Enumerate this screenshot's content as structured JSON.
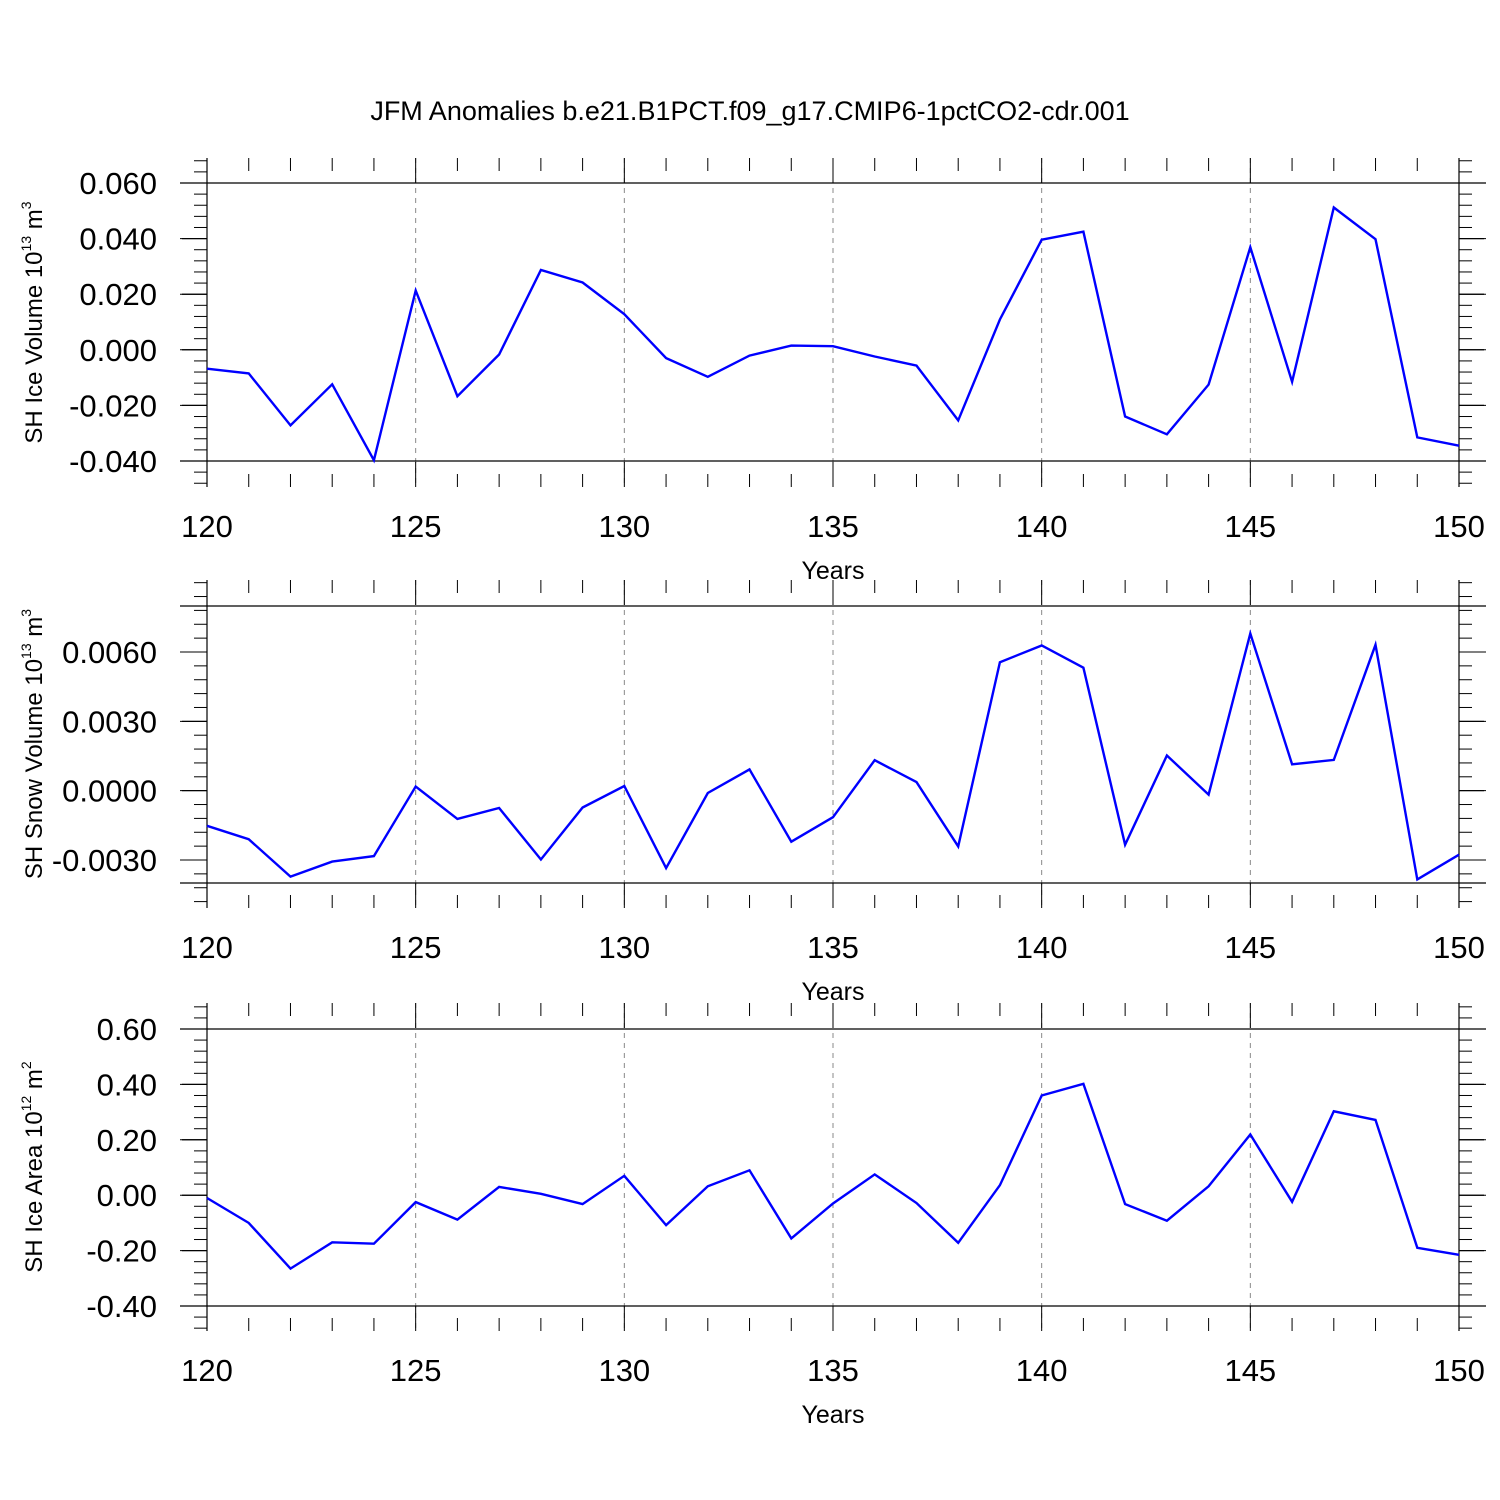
{
  "title": "JFM Anomalies b.e21.B1PCT.f09_g17.CMIP6-1pctCO2-cdr.001",
  "colors": {
    "line": "#0000ff",
    "grid": "#888888",
    "axis": "#000000"
  },
  "chart_data": [
    {
      "type": "line",
      "ylabel": {
        "text": "SH Ice Volume 10",
        "exp": "13",
        "unit": " m",
        "unit_exp": "3"
      },
      "xlabel": "Years",
      "xlim": [
        120,
        150
      ],
      "ylim": [
        -0.04,
        0.06
      ],
      "xticks": [
        "120",
        "125",
        "130",
        "135",
        "140",
        "145",
        "150"
      ],
      "yticks": [
        "-0.040",
        "-0.020",
        "0.000",
        "0.020",
        "0.040",
        "0.060"
      ],
      "grid_x": [
        125,
        130,
        135,
        140,
        145
      ],
      "x": [
        120,
        121,
        122,
        123,
        124,
        125,
        126,
        127,
        128,
        129,
        130,
        131,
        132,
        133,
        134,
        135,
        136,
        137,
        138,
        139,
        140,
        141,
        142,
        143,
        144,
        145,
        146,
        147,
        148,
        149,
        150
      ],
      "values": [
        -0.0068,
        -0.0085,
        -0.0272,
        -0.0124,
        -0.0397,
        0.0213,
        -0.0167,
        -0.0017,
        0.0287,
        0.0242,
        0.0128,
        -0.003,
        -0.0097,
        -0.0021,
        0.0015,
        0.0013,
        -0.0024,
        -0.0057,
        -0.0254,
        0.0109,
        0.0396,
        0.0425,
        -0.024,
        -0.0304,
        -0.0125,
        0.0369,
        -0.0115,
        0.0512,
        0.0398,
        -0.0315,
        -0.0345
      ]
    },
    {
      "type": "line",
      "ylabel": {
        "text": "SH Snow Volume 10",
        "exp": "13",
        "unit": " m",
        "unit_exp": "3"
      },
      "xlabel": "Years",
      "xlim": [
        120,
        150
      ],
      "ylim": [
        -0.004,
        0.0081
      ],
      "xticks": [
        "120",
        "125",
        "130",
        "135",
        "140",
        "145",
        "150"
      ],
      "yticks": [
        "-0.0030",
        "0.0000",
        "0.0030",
        "0.0060"
      ],
      "ytick_values": [
        -0.003,
        0.0,
        0.003,
        0.006
      ],
      "grid_x": [
        125,
        130,
        135,
        140,
        145
      ],
      "x": [
        120,
        121,
        122,
        123,
        124,
        125,
        126,
        127,
        128,
        129,
        130,
        131,
        132,
        133,
        134,
        135,
        136,
        137,
        138,
        139,
        140,
        141,
        142,
        143,
        144,
        145,
        146,
        147,
        148,
        149,
        150
      ],
      "values": [
        -0.00152,
        -0.0021,
        -0.00372,
        -0.00307,
        -0.00283,
        0.00018,
        -0.00122,
        -0.00075,
        -0.00298,
        -0.00073,
        0.0002,
        -0.00335,
        -0.0001,
        0.00092,
        -0.00221,
        -0.00115,
        0.00132,
        0.00037,
        -0.00241,
        0.00556,
        0.00628,
        0.00532,
        -0.00234,
        0.00152,
        -0.00017,
        0.0068,
        0.00114,
        0.00133,
        0.00631,
        -0.00384,
        -0.00277
      ]
    },
    {
      "type": "line",
      "ylabel": {
        "text": "SH Ice Area 10",
        "exp": "12",
        "unit": " m",
        "unit_exp": "2"
      },
      "xlabel": "Years",
      "xlim": [
        120,
        150
      ],
      "ylim": [
        -0.4,
        0.6
      ],
      "xticks": [
        "120",
        "125",
        "130",
        "135",
        "140",
        "145",
        "150"
      ],
      "yticks": [
        "-0.40",
        "-0.20",
        "0.00",
        "0.20",
        "0.40",
        "0.60"
      ],
      "grid_x": [
        125,
        130,
        135,
        140,
        145
      ],
      "x": [
        120,
        121,
        122,
        123,
        124,
        125,
        126,
        127,
        128,
        129,
        130,
        131,
        132,
        133,
        134,
        135,
        136,
        137,
        138,
        139,
        140,
        141,
        142,
        143,
        144,
        145,
        146,
        147,
        148,
        149,
        150
      ],
      "values": [
        -0.01,
        -0.1,
        -0.265,
        -0.17,
        -0.175,
        -0.025,
        -0.088,
        0.03,
        0.005,
        -0.032,
        0.07,
        -0.108,
        0.032,
        0.09,
        -0.156,
        -0.03,
        0.075,
        -0.028,
        -0.172,
        0.036,
        0.36,
        0.402,
        -0.032,
        -0.092,
        0.032,
        0.219,
        -0.024,
        0.303,
        0.272,
        -0.19,
        -0.215
      ]
    }
  ]
}
